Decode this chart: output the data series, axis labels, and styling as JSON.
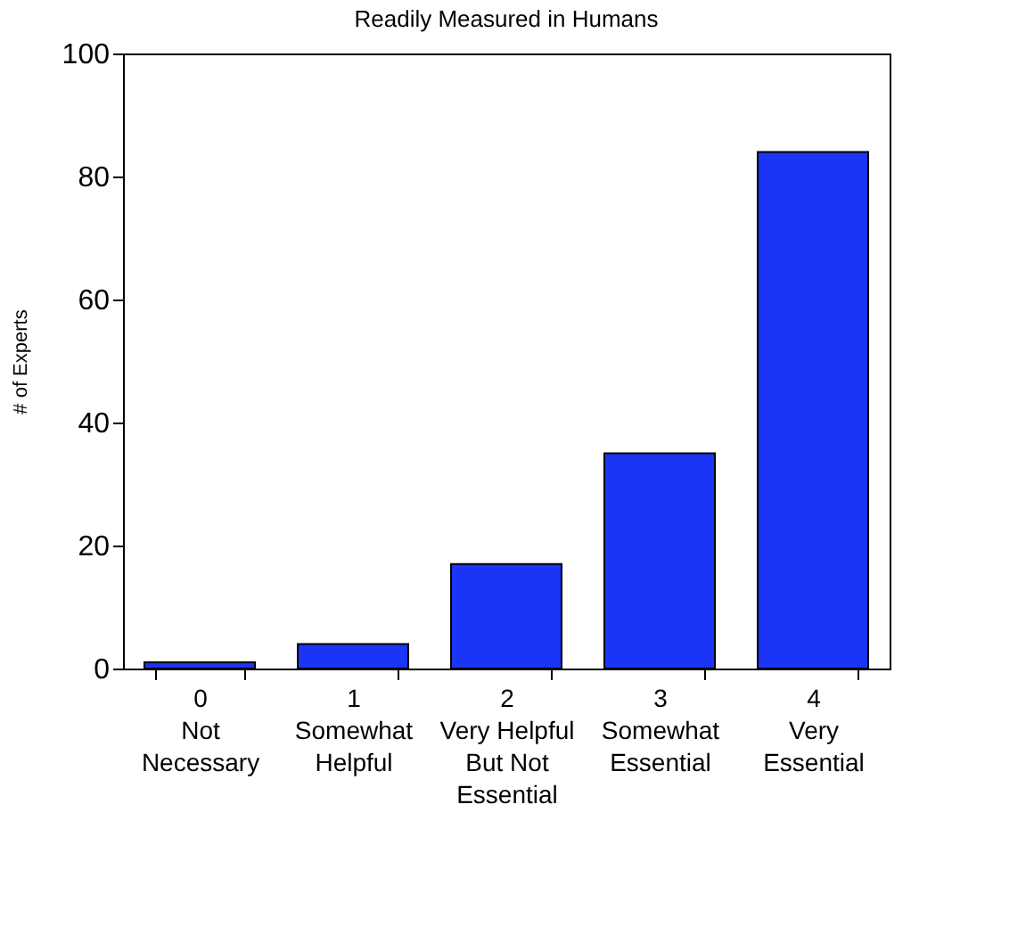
{
  "chart_data": {
    "type": "bar",
    "title": "Readily Measured in Humans",
    "ylabel": "# of Experts",
    "categories": [
      "0\nNot\nNecessary",
      "1\nSomewhat\nHelpful",
      "2\nVery Helpful\nBut Not\nEssential",
      "3\nSomewhat\nEssential",
      "4\nVery\nEssential"
    ],
    "values": [
      1,
      4,
      17,
      35,
      84
    ],
    "color": "#1a35f5",
    "ylim": [
      0,
      100
    ],
    "yticks": [
      0,
      20,
      40,
      60,
      80,
      100
    ],
    "grid": false
  }
}
